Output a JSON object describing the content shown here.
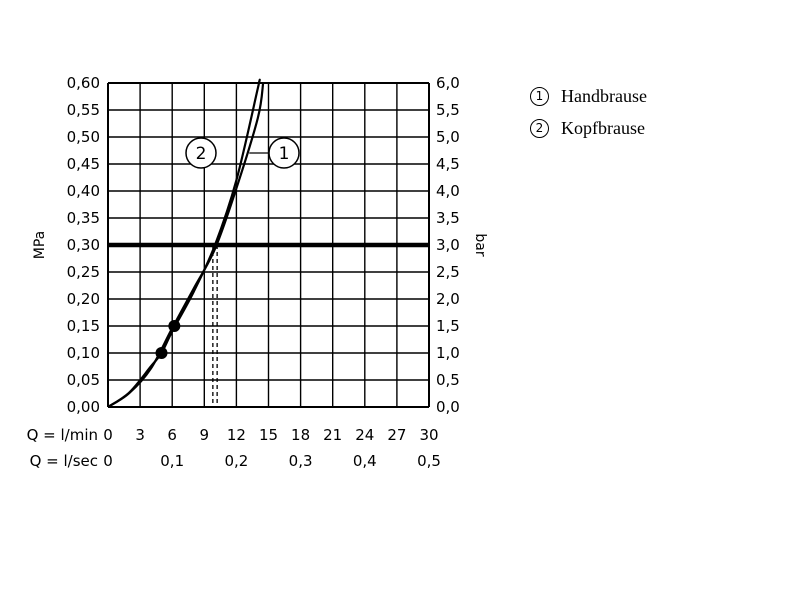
{
  "chart_data": {
    "type": "line",
    "left_axis": {
      "label": "MPa",
      "range": [
        0,
        0.6
      ],
      "ticks": [
        "0,00",
        "0,05",
        "0,10",
        "0,15",
        "0,20",
        "0,25",
        "0,30",
        "0,35",
        "0,40",
        "0,45",
        "0,50",
        "0,55",
        "0,60"
      ]
    },
    "right_axis": {
      "label": "bar",
      "range": [
        0,
        6
      ],
      "ticks": [
        "0,0",
        "0,5",
        "1,0",
        "1,5",
        "2,0",
        "2,5",
        "3,0",
        "3,5",
        "4,0",
        "4,5",
        "5,0",
        "5,5",
        "6,0"
      ]
    },
    "x_axis_lmin": {
      "label": "Q = l/min",
      "range": [
        0,
        30
      ],
      "ticks": [
        "0",
        "3",
        "6",
        "9",
        "12",
        "15",
        "18",
        "21",
        "24",
        "27",
        "30"
      ]
    },
    "x_axis_lsec": {
      "label": "Q = l/sec",
      "ticks": [
        "0",
        "0,1",
        "0,2",
        "0,3",
        "0,4",
        "0,5"
      ]
    },
    "grid": true,
    "reference_line_mpa": 0.3,
    "series": [
      {
        "name": "1",
        "x": [
          0,
          2,
          4,
          6,
          8,
          10,
          12,
          14,
          14.5
        ],
        "y": [
          0,
          0.026,
          0.071,
          0.146,
          0.219,
          0.293,
          0.405,
          0.535,
          0.6
        ],
        "marker_point": [
          6.2,
          0.15
        ],
        "dashed_drop_at_x": 10.2
      },
      {
        "name": "2",
        "x": [
          0,
          2,
          4,
          5,
          6,
          8,
          10,
          12,
          14,
          14.1
        ],
        "y": [
          0,
          0.027,
          0.075,
          0.1,
          0.14,
          0.213,
          0.3,
          0.42,
          0.59,
          0.6
        ],
        "marker_point": [
          5.0,
          0.1
        ],
        "dashed_drop_at_x": 9.8
      }
    ],
    "callouts": [
      {
        "label": "2",
        "line_to_x": 10.1,
        "line_to_y": 0.47
      },
      {
        "label": "1",
        "line_to_x": 13.2,
        "line_to_y": 0.47
      }
    ]
  },
  "legend": [
    {
      "marker": "1",
      "label": "Handbrause"
    },
    {
      "marker": "2",
      "label": "Kopfbrause"
    }
  ]
}
